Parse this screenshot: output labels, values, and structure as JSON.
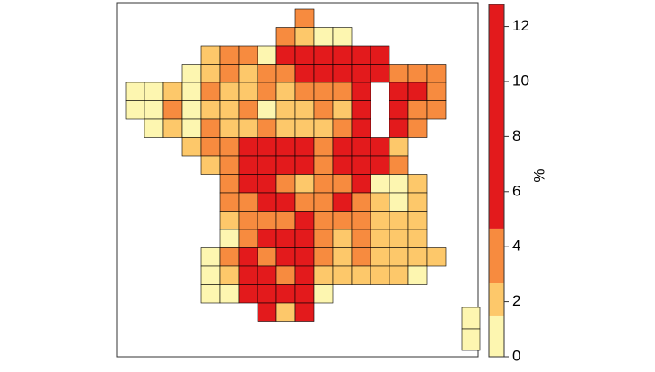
{
  "chart_data": {
    "type": "choropleth",
    "legend": {
      "title": "%",
      "ylim": [
        0,
        12.8
      ],
      "yticks": [
        0,
        2,
        4,
        6,
        8,
        10,
        12
      ],
      "bins": [
        0,
        1.5,
        2.67,
        4.66,
        12.8
      ],
      "colors": [
        "#fdf6b0",
        "#fdc86a",
        "#f78b3f",
        "#e31a1c"
      ]
    },
    "rows": [
      [
        null,
        null,
        null,
        null,
        null,
        null,
        null,
        null,
        null,
        3.5,
        null,
        null,
        null,
        null,
        null,
        null,
        null,
        null
      ],
      [
        null,
        null,
        null,
        null,
        null,
        null,
        null,
        null,
        3.5,
        2,
        1,
        1,
        null,
        null,
        null,
        null,
        null,
        null
      ],
      [
        null,
        null,
        null,
        null,
        2,
        3.5,
        3.5,
        1,
        8,
        8,
        8,
        8,
        8,
        8,
        null,
        null,
        null,
        null
      ],
      [
        null,
        null,
        null,
        1,
        2,
        3.5,
        2,
        3.5,
        3.5,
        8,
        8,
        8,
        8,
        8,
        3.5,
        3.5,
        3.5,
        null
      ],
      [
        1,
        1,
        2,
        1,
        3.5,
        2,
        2,
        3.5,
        2,
        3.5,
        3.5,
        3.5,
        8,
        null,
        8,
        8,
        3.5,
        null
      ],
      [
        1,
        1,
        3.5,
        1,
        2,
        2,
        3.5,
        1,
        2,
        2,
        3.5,
        2,
        8,
        null,
        8,
        3.5,
        3.5,
        null
      ],
      [
        null,
        1,
        2,
        1,
        3.5,
        2,
        2,
        3.5,
        2,
        2,
        2,
        3.5,
        8,
        null,
        8,
        3.5,
        null,
        null
      ],
      [
        null,
        null,
        null,
        2,
        3.5,
        3.5,
        8,
        8,
        8,
        8,
        3.5,
        8,
        8,
        8,
        2,
        null,
        null,
        null
      ],
      [
        null,
        null,
        null,
        null,
        2,
        3.5,
        8,
        8,
        8,
        8,
        3.5,
        8,
        8,
        8,
        3.5,
        null,
        null,
        null
      ],
      [
        null,
        null,
        null,
        null,
        null,
        3.5,
        8,
        8,
        3.5,
        2,
        3.5,
        3.5,
        8,
        1,
        1,
        2,
        null,
        null
      ],
      [
        null,
        null,
        null,
        null,
        null,
        3.5,
        3.5,
        8,
        8,
        3.5,
        3.5,
        8,
        3.5,
        2,
        1,
        2,
        null,
        null
      ],
      [
        null,
        null,
        null,
        null,
        null,
        2,
        3.5,
        3.5,
        3.5,
        8,
        3.5,
        3.5,
        3.5,
        2,
        2,
        2,
        null,
        null
      ],
      [
        null,
        null,
        null,
        null,
        null,
        1,
        3.5,
        8,
        8,
        8,
        3.5,
        2,
        3.5,
        2,
        2,
        2,
        null,
        null
      ],
      [
        null,
        null,
        null,
        null,
        1,
        3.5,
        8,
        3.5,
        8,
        8,
        3.5,
        2,
        3.5,
        2,
        2,
        2,
        2,
        null
      ],
      [
        null,
        null,
        null,
        null,
        1,
        2,
        8,
        8,
        3.5,
        8,
        2,
        2,
        2,
        2,
        2,
        1,
        null,
        null
      ],
      [
        null,
        null,
        null,
        null,
        1,
        1,
        8,
        8,
        8,
        8,
        1,
        null,
        null,
        null,
        null,
        null,
        null,
        null
      ],
      [
        null,
        null,
        null,
        null,
        null,
        null,
        null,
        8,
        2,
        8,
        null,
        null,
        null,
        null,
        null,
        null,
        null,
        null
      ]
    ],
    "corsica": [
      1,
      1
    ]
  }
}
